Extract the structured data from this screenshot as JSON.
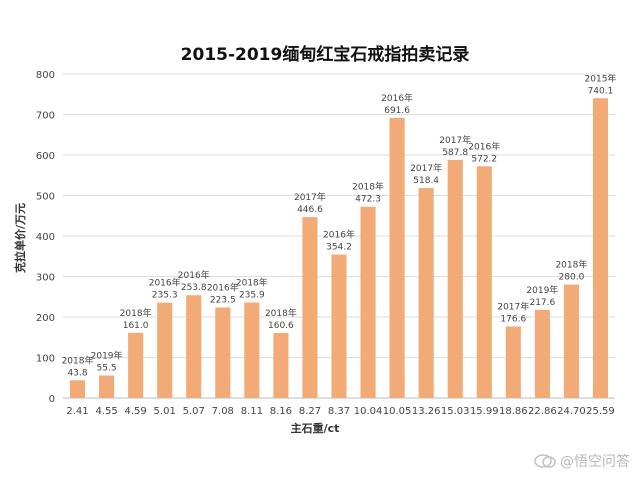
{
  "chart_data": {
    "type": "bar",
    "title": "2015-2019缅甸红宝石戒指拍卖记录",
    "xlabel": "主石重/ct",
    "ylabel": "克拉单价/万元",
    "ylim": [
      0,
      800
    ],
    "yticks": [
      0,
      100,
      200,
      300,
      400,
      500,
      600,
      700,
      800
    ],
    "grid": true,
    "bar_color": "#f2aa76",
    "categories": [
      "2.41",
      "4.55",
      "4.59",
      "5.01",
      "5.07",
      "7.08",
      "8.11",
      "8.16",
      "8.27",
      "8.37",
      "10.04",
      "10.05",
      "13.26",
      "15.03",
      "15.99",
      "18.86",
      "22.86",
      "24.70",
      "25.59"
    ],
    "values": [
      43.8,
      55.5,
      161.0,
      235.3,
      253.8,
      223.5,
      235.9,
      160.6,
      446.6,
      354.2,
      472.3,
      691.6,
      518.4,
      587.8,
      572.2,
      176.6,
      217.6,
      280.0,
      740.1
    ],
    "years": [
      "2018年",
      "2019年",
      "2018年",
      "2016年",
      "2016年",
      "2016年",
      "2018年",
      "2018年",
      "2017年",
      "2016年",
      "2018年",
      "2016年",
      "2017年",
      "2017年",
      "2016年",
      "2017年",
      "2019年",
      "2018年",
      "2015年"
    ],
    "value_labels": [
      "43.8",
      "55.5",
      "161.0",
      "235.3",
      "253.8",
      "223.5",
      "235.9",
      "160.6",
      "446.6",
      "354.2",
      "472.3",
      "691.6",
      "518.4",
      "587.8",
      "572.2",
      "176.6",
      "217.6",
      "280.0",
      "740.1"
    ]
  },
  "watermark": {
    "text": "@悟空问答"
  }
}
